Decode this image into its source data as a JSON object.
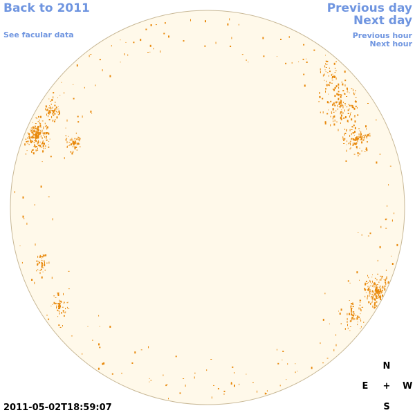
{
  "nav": {
    "back": "Back to 2011",
    "facular": "See facular data",
    "previous_day": "Previous day",
    "next_day": "Next day",
    "previous_hour": "Previous hour",
    "next_hour": "Next hour"
  },
  "timestamp": "2011-05-02T18:59:07",
  "compass": {
    "north": "N",
    "east": "E",
    "center": "+",
    "west": "W",
    "south": "S"
  },
  "colors": {
    "disk_fill": "#fff9ea",
    "disk_border": "#c8b896",
    "facula": "#e8890c",
    "link": "#6f95e0"
  },
  "regions": [
    {
      "name": "east-limb-cluster",
      "density": 0.9
    },
    {
      "name": "northwest-limb-cluster",
      "density": 0.85
    },
    {
      "name": "southwest-limb-cluster",
      "density": 0.9
    },
    {
      "name": "limb-scatter",
      "density": 0.4
    }
  ]
}
